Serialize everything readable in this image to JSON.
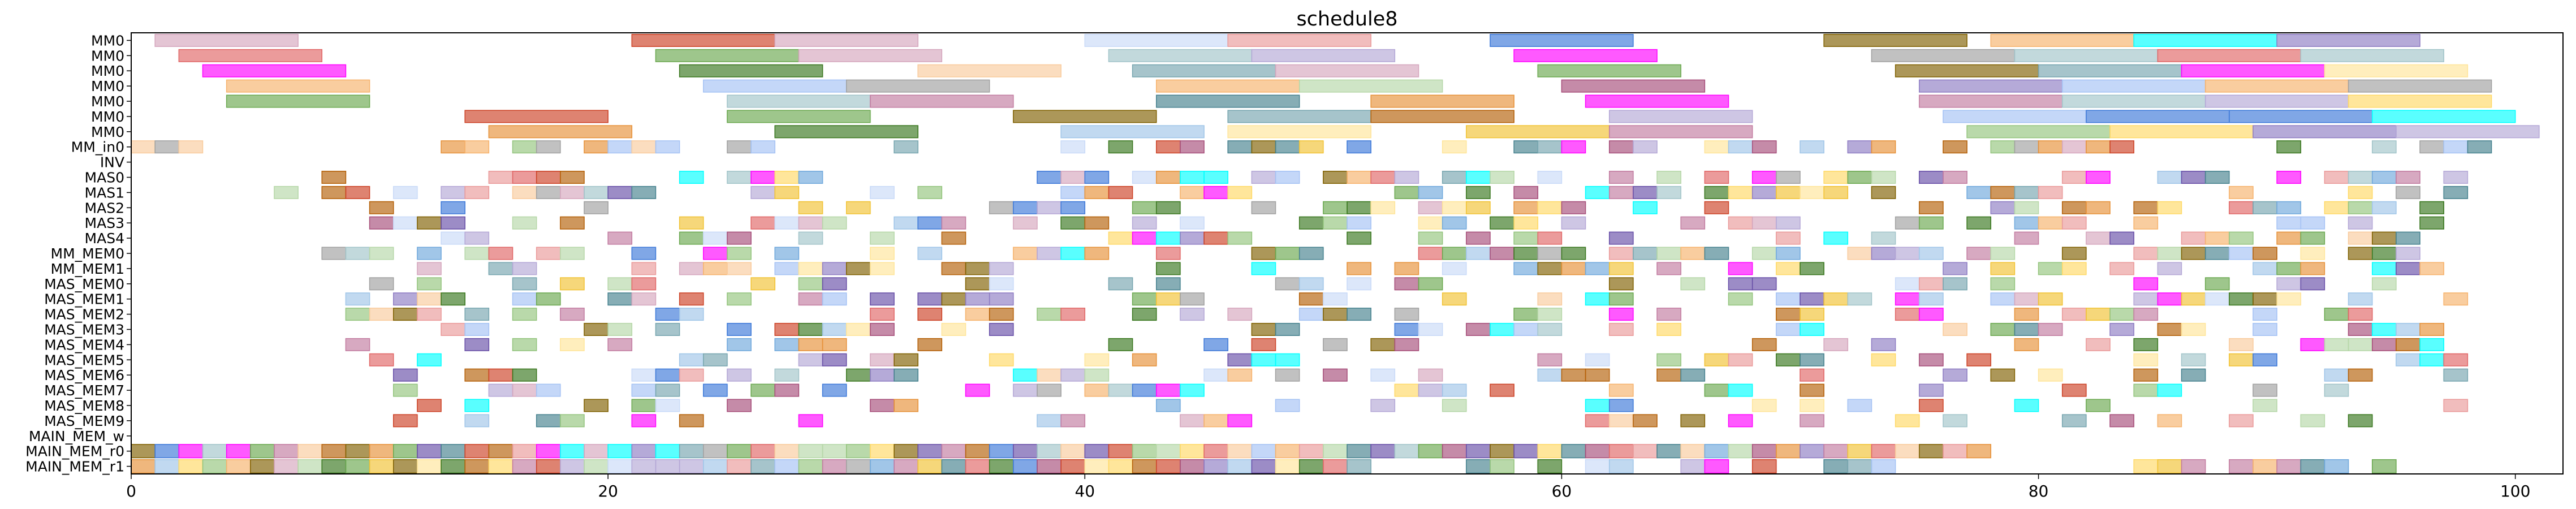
{
  "chart_data": {
    "type": "gantt",
    "title": "schedule8",
    "xlabel": "",
    "ylabel": "",
    "xlim": [
      0,
      102
    ],
    "x_ticks": [
      0,
      20,
      40,
      60,
      80,
      100
    ],
    "rows": [
      "MM0",
      "MM0",
      "MM0",
      "MM0",
      "MM0",
      "MM0",
      "MM0",
      "MM_in0",
      "INV",
      "MAS0",
      "MAS1",
      "MAS2",
      "MAS3",
      "MAS4",
      "MM_MEM0",
      "MM_MEM1",
      "MAS_MEM0",
      "MAS_MEM1",
      "MAS_MEM2",
      "MAS_MEM3",
      "MAS_MEM4",
      "MAS_MEM5",
      "MAS_MEM6",
      "MAS_MEM7",
      "MAS_MEM8",
      "MAS_MEM9",
      "MAIN_MEM_w",
      "MAIN_MEM_r0",
      "MAIN_MEM_r1"
    ],
    "palette": [
      "#e06666",
      "#6fa8dc",
      "#93c47d",
      "#f6b26b",
      "#8e7cc3",
      "#76a5af",
      "#c27ba0",
      "#ffd966",
      "#a4c2f4",
      "#b6d7a8",
      "#ea9999",
      "#9fc5e8",
      "#ffe599",
      "#d5a6bd",
      "#6aa84f",
      "#3c78d8",
      "#cc4125",
      "#45818e",
      "#f1c232",
      "#674ea7",
      "#a64d79",
      "#e69138",
      "#7f6000",
      "#38761d",
      "#b4a7d6",
      "#a2c4c9",
      "#f9cb9c",
      "#b45f06",
      "#ff00ff",
      "#00ffff",
      "#a0a0a0",
      "#c9daf8"
    ],
    "seed": 8,
    "density": {
      "MAS0": 0.62,
      "MAS1": 0.52,
      "MAS2": 0.45,
      "MAS3": 0.45,
      "MAS4": 0.42,
      "MM_MEM0": 0.55,
      "MM_MEM1": 0.52,
      "MAS_MEM0": 0.38,
      "MAS_MEM1": 0.42,
      "MAS_MEM2": 0.42,
      "MAS_MEM3": 0.38,
      "MAS_MEM4": 0.38,
      "MAS_MEM5": 0.32,
      "MAS_MEM6": 0.32,
      "MAS_MEM7": 0.32,
      "MAS_MEM8": 0.32,
      "MAS_MEM9": 0.32
    },
    "tasks": {
      "MM0_0": [
        [
          1,
          7
        ],
        [
          21,
          27
        ],
        [
          27,
          33
        ],
        [
          40,
          46
        ],
        [
          46,
          52
        ],
        [
          57,
          63
        ],
        [
          71,
          77
        ],
        [
          78,
          84
        ],
        [
          84,
          90
        ],
        [
          90,
          96
        ]
      ],
      "MM0_1": [
        [
          2,
          8
        ],
        [
          22,
          28
        ],
        [
          28,
          34
        ],
        [
          41,
          47
        ],
        [
          47,
          53
        ],
        [
          58,
          64
        ],
        [
          73,
          79
        ],
        [
          79,
          85
        ],
        [
          85,
          91
        ],
        [
          91,
          97
        ]
      ],
      "MM0_2": [
        [
          3,
          9
        ],
        [
          23,
          29
        ],
        [
          33,
          39
        ],
        [
          42,
          48
        ],
        [
          48,
          54
        ],
        [
          59,
          65
        ],
        [
          74,
          80
        ],
        [
          80,
          86
        ],
        [
          86,
          92
        ],
        [
          92,
          98
        ]
      ],
      "MM0_3": [
        [
          4,
          10
        ],
        [
          24,
          30
        ],
        [
          30,
          36
        ],
        [
          43,
          49
        ],
        [
          49,
          55
        ],
        [
          60,
          66
        ],
        [
          75,
          81
        ],
        [
          81,
          87
        ],
        [
          87,
          93
        ],
        [
          93,
          99
        ]
      ],
      "MM0_4": [
        [
          4,
          10
        ],
        [
          25,
          31
        ],
        [
          31,
          37
        ],
        [
          43,
          49
        ],
        [
          52,
          58
        ],
        [
          61,
          67
        ],
        [
          75,
          81
        ],
        [
          81,
          87
        ],
        [
          87,
          93
        ],
        [
          93,
          99
        ]
      ],
      "MM0_5": [
        [
          14,
          20
        ],
        [
          25,
          31
        ],
        [
          37,
          43
        ],
        [
          46,
          52
        ],
        [
          52,
          58
        ],
        [
          62,
          68
        ],
        [
          76,
          82
        ],
        [
          82,
          88
        ],
        [
          88,
          94
        ],
        [
          94,
          100
        ]
      ],
      "MM0_6": [
        [
          15,
          21
        ],
        [
          27,
          33
        ],
        [
          39,
          45
        ],
        [
          46,
          52
        ],
        [
          56,
          62
        ],
        [
          62,
          68
        ],
        [
          77,
          83
        ],
        [
          83,
          89
        ],
        [
          89,
          95
        ],
        [
          95,
          101
        ]
      ],
      "MM_in0_ranges": [
        [
          0,
          4.5
        ],
        [
          13,
          33
        ],
        [
          38,
          99
        ]
      ],
      "INV": [],
      "MAIN_MEM_w": [],
      "MAIN_MEM_r0": [
        [
          0,
          78
        ]
      ],
      "MAIN_MEM_r1": [
        [
          0,
          52
        ],
        [
          55,
          75
        ],
        [
          83,
          95
        ]
      ],
      "MAS0_range": [
        5,
        99
      ],
      "MAS1_range": [
        6,
        99
      ],
      "MAS2_range": [
        9,
        97
      ],
      "MAS3_range": [
        9,
        98
      ],
      "MAS4_range": [
        13,
        97
      ],
      "MM_MEM0_range": [
        8,
        97
      ],
      "MM_MEM1_range": [
        8,
        97
      ],
      "MAS_MEM_range": [
        9,
        98
      ]
    }
  }
}
